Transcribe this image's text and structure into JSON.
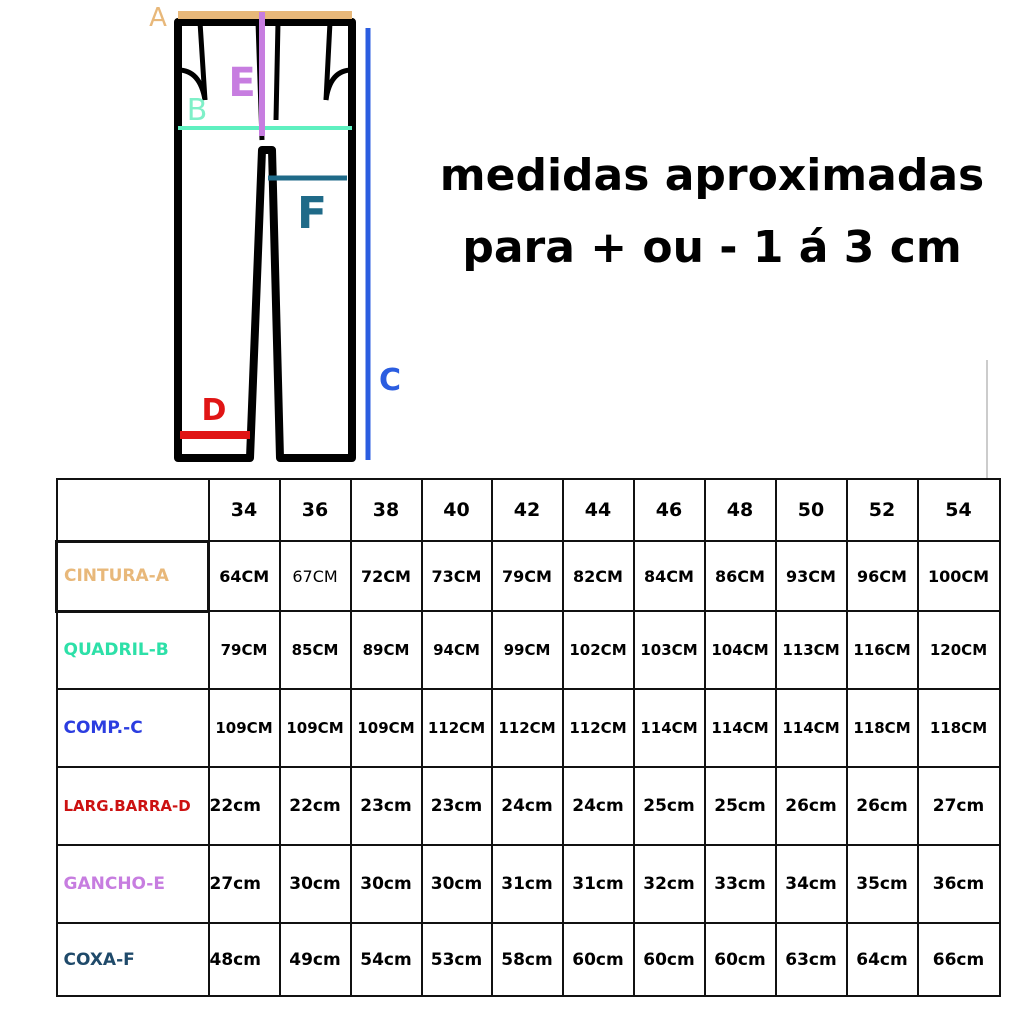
{
  "header": {
    "title_line1": "medidas aproximadas",
    "title_line2": "para + ou - 1 á 3 cm"
  },
  "diagram": {
    "a": "A",
    "b": "B",
    "c": "C",
    "d": "D",
    "e": "E",
    "f": "F"
  },
  "table": {
    "sizes": [
      "34",
      "36",
      "38",
      "40",
      "42",
      "44",
      "46",
      "48",
      "50",
      "52",
      "54"
    ],
    "rows": [
      {
        "label": "CINTURA-A",
        "color": "#e8b87a",
        "cells": [
          "64CM",
          "67CM",
          "72CM",
          "73CM",
          "79CM",
          "82CM",
          "84CM",
          "86CM",
          "93CM",
          "96CM",
          "100CM"
        ]
      },
      {
        "label": "QUADRIL-B",
        "color": "#2de0a8",
        "cells": [
          "79CM",
          "85CM",
          "89CM",
          "94CM",
          "99CM",
          "102CM",
          "103CM",
          "104CM",
          "113CM",
          "116CM",
          "120CM"
        ]
      },
      {
        "label": "COMP.-C",
        "color": "#2b3de0",
        "cells": [
          "109CM",
          "109CM",
          "109CM",
          "112CM",
          "112CM",
          "112CM",
          "114CM",
          "114CM",
          "114CM",
          "118CM",
          "118CM"
        ]
      },
      {
        "label": "LARG.BARRA-D",
        "color": "#cc1111",
        "cells": [
          "22cm",
          "22cm",
          "23cm",
          "23cm",
          "24cm",
          "24cm",
          "25cm",
          "25cm",
          "26cm",
          "26cm",
          "27cm"
        ]
      },
      {
        "label": "GANCHO-E",
        "color": "#c77de0",
        "cells": [
          "27cm",
          "30cm",
          "30cm",
          "30cm",
          "31cm",
          "31cm",
          "32cm",
          "33cm",
          "34cm",
          "35cm",
          "36cm"
        ]
      },
      {
        "label": "COXA-F",
        "color": "#1f4a6a",
        "cells": [
          "48cm",
          "49cm",
          "54cm",
          "53cm",
          "58cm",
          "60cm",
          "60cm",
          "60cm",
          "63cm",
          "64cm",
          "66cm"
        ]
      }
    ]
  }
}
